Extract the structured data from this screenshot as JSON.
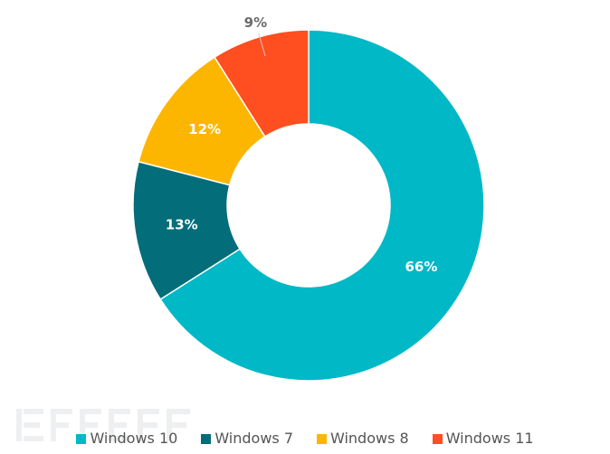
{
  "chart_data": {
    "type": "pie",
    "style": "donut",
    "title": "",
    "slices": [
      {
        "name": "Windows 10",
        "value": 66,
        "label": "66%",
        "color": "#01B8C6"
      },
      {
        "name": "Windows 7",
        "value": 13,
        "label": "13%",
        "color": "#036D7A"
      },
      {
        "name": "Windows 8",
        "value": 12,
        "label": "12%",
        "color": "#FDB600"
      },
      {
        "name": "Windows 11",
        "value": 9,
        "label": "9%",
        "color": "#FF4E1F"
      }
    ],
    "legend_position": "bottom",
    "label_colors": {
      "inside": "#ffffff",
      "outside": "#6b6b6b"
    }
  }
}
